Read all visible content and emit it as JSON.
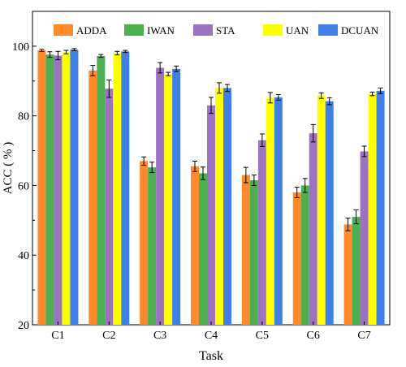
{
  "chart_data": {
    "type": "bar",
    "title": "",
    "xlabel": "Task",
    "ylabel": "ACC ( % )",
    "ylim": [
      20,
      110
    ],
    "yticks": [
      20,
      40,
      60,
      80,
      100
    ],
    "grid": false,
    "legend_position": "top",
    "categories": [
      "C1",
      "C2",
      "C3",
      "C4",
      "C5",
      "C6",
      "C7"
    ],
    "series": [
      {
        "name": "ADDA",
        "color": "#ff8a2b",
        "values": [
          98.8,
          93.0,
          67.0,
          65.5,
          63.0,
          58.0,
          48.8
        ],
        "errors": [
          0.3,
          1.5,
          1.2,
          1.5,
          2.2,
          1.5,
          1.8
        ]
      },
      {
        "name": "IWAN",
        "color": "#4caf50",
        "values": [
          97.6,
          97.2,
          65.2,
          63.5,
          61.5,
          60.0,
          51.0
        ],
        "errors": [
          0.8,
          0.4,
          1.5,
          1.8,
          1.5,
          2.0,
          2.0
        ]
      },
      {
        "name": "STA",
        "color": "#9b73bf",
        "values": [
          97.3,
          87.8,
          93.8,
          83.0,
          73.0,
          75.0,
          69.8
        ],
        "errors": [
          1.2,
          2.5,
          1.5,
          2.3,
          1.8,
          2.5,
          1.5
        ]
      },
      {
        "name": "UAN",
        "color": "#ffff00",
        "values": [
          98.3,
          98.0,
          92.0,
          88.0,
          85.2,
          85.8,
          86.3
        ],
        "errors": [
          0.5,
          0.5,
          0.5,
          1.5,
          1.5,
          0.8,
          0.5
        ]
      },
      {
        "name": "DCUAN",
        "color": "#3f7fe6",
        "values": [
          99.0,
          98.5,
          93.5,
          88.0,
          85.3,
          84.2,
          87.2
        ],
        "errors": [
          0.3,
          0.3,
          0.8,
          1.0,
          0.8,
          1.0,
          0.8
        ]
      }
    ]
  }
}
